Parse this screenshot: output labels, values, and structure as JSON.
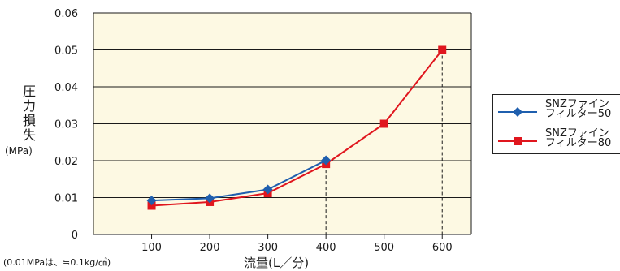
{
  "chart_data": {
    "type": "line",
    "ylabel": "圧力損失",
    "yunit": "(MPa)",
    "xlabel": "流量(L／分)",
    "footnote": "(0.01MPaは、≒0.1kg/㎠)",
    "x": [
      100,
      200,
      300,
      400,
      500,
      600
    ],
    "xlim": [
      0,
      650
    ],
    "ylim": [
      0,
      0.06
    ],
    "yticks": [
      "0",
      "0.01",
      "0.02",
      "0.03",
      "0.04",
      "0.05",
      "0.06"
    ],
    "xticks": [
      "100",
      "200",
      "300",
      "400",
      "500",
      "600"
    ],
    "grid": true,
    "background": "#fdf9e3",
    "legend_position": "right",
    "series": [
      {
        "name": "SNZファイン\nフィルター50",
        "x": [
          100,
          200,
          300,
          400
        ],
        "values": [
          0.0092,
          0.0098,
          0.0122,
          0.0201
        ],
        "color": "#1f5fae",
        "marker": "diamond"
      },
      {
        "name": "SNZファイン\nフィルター80",
        "x": [
          100,
          200,
          300,
          400,
          500,
          600
        ],
        "values": [
          0.0078,
          0.0088,
          0.0112,
          0.0191,
          0.03,
          0.05
        ],
        "color": "#e0161e",
        "marker": "square"
      }
    ],
    "dashed_guides_x": [
      400,
      600
    ]
  }
}
